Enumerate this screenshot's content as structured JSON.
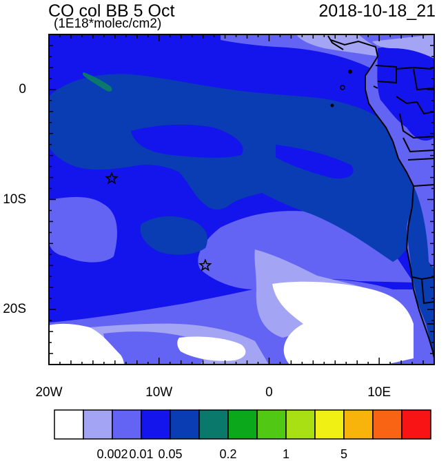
{
  "title": "CO col BB 5 Oct",
  "subtitle": "(1E18*molec/cm2)",
  "timestamp": "2018-10-18_21",
  "map": {
    "lon_range": [
      -20,
      15
    ],
    "lat_range": [
      -25,
      5
    ],
    "x_ticks": [
      {
        "lon": -20,
        "label": "20W"
      },
      {
        "lon": -10,
        "label": "10W"
      },
      {
        "lon": 0,
        "label": "0"
      },
      {
        "lon": 10,
        "label": "10E"
      }
    ],
    "y_ticks": [
      {
        "lat": 0,
        "label": "0"
      },
      {
        "lat": -10,
        "label": "10S"
      },
      {
        "lat": -20,
        "label": "20S"
      }
    ],
    "markers": [
      {
        "type": "star",
        "lon": -14.3,
        "lat": -8.1
      },
      {
        "type": "star",
        "lon": -5.8,
        "lat": -16.0
      }
    ]
  },
  "colorbar": {
    "colors": [
      "#ffffff",
      "#a4a4f4",
      "#6464f4",
      "#1414ec",
      "#0a3cb4",
      "#0a786a",
      "#0aa81a",
      "#50c814",
      "#a8e014",
      "#f0f014",
      "#f8b40a",
      "#f86414",
      "#f81414"
    ],
    "labels": [
      {
        "after_box": 2,
        "text": "0.002"
      },
      {
        "after_box": 3,
        "text": "0.01"
      },
      {
        "after_box": 4,
        "text": "0.05"
      },
      {
        "after_box": 6,
        "text": "0.2"
      },
      {
        "after_box": 8,
        "text": "1"
      },
      {
        "after_box": 10,
        "text": "5"
      }
    ]
  }
}
